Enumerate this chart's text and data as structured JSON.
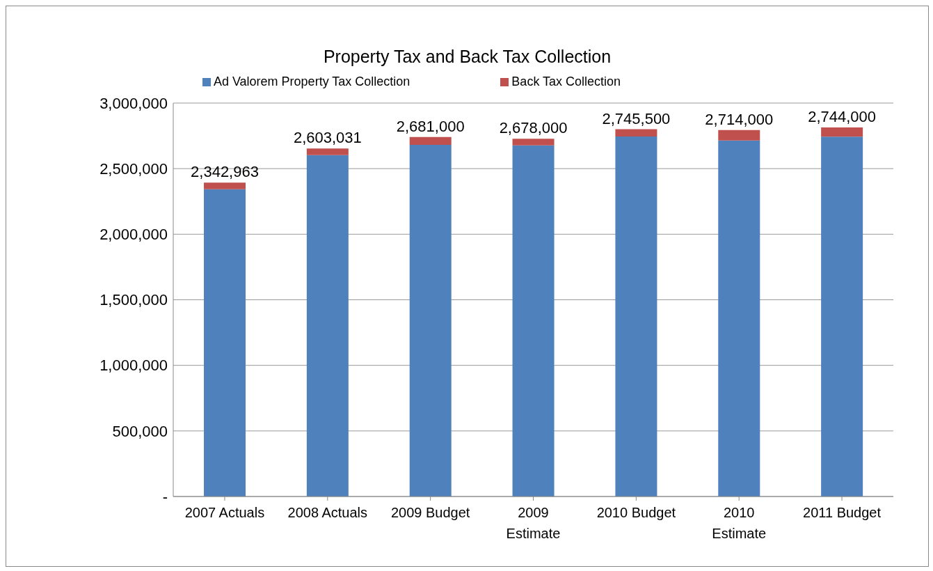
{
  "chart_data": {
    "type": "bar",
    "title": "Property Tax and Back Tax Collection",
    "categories": [
      "2007 Actuals",
      "2008 Actuals",
      "2009 Budget",
      "2009 Estimate",
      "2010 Budget",
      "2010 Estimate",
      "2011 Budget"
    ],
    "stacked": true,
    "series": [
      {
        "name": "Ad Valorem Property Tax Collection",
        "color": "#4f81bd",
        "values": [
          2342963,
          2603031,
          2681000,
          2678000,
          2745500,
          2714000,
          2744000
        ],
        "value_labels": [
          "2,342,963",
          "2,603,031",
          "2,681,000",
          "2,678,000",
          "2,745,500",
          "2,714,000",
          "2,744,000"
        ]
      },
      {
        "name": "Back Tax Collection",
        "color": "#c0504d",
        "values": [
          50000,
          50000,
          60000,
          50000,
          55000,
          80000,
          70000
        ]
      }
    ],
    "ylim": [
      0,
      3000000
    ],
    "yticks": [
      {
        "value": 0,
        "label": "-"
      },
      {
        "value": 500000,
        "label": "500,000"
      },
      {
        "value": 1000000,
        "label": "1,000,000"
      },
      {
        "value": 1500000,
        "label": "1,500,000"
      },
      {
        "value": 2000000,
        "label": "2,000,000"
      },
      {
        "value": 2500000,
        "label": "2,500,000"
      },
      {
        "value": 3000000,
        "label": "3,000,000"
      }
    ],
    "grid": "y",
    "legend": "top"
  }
}
